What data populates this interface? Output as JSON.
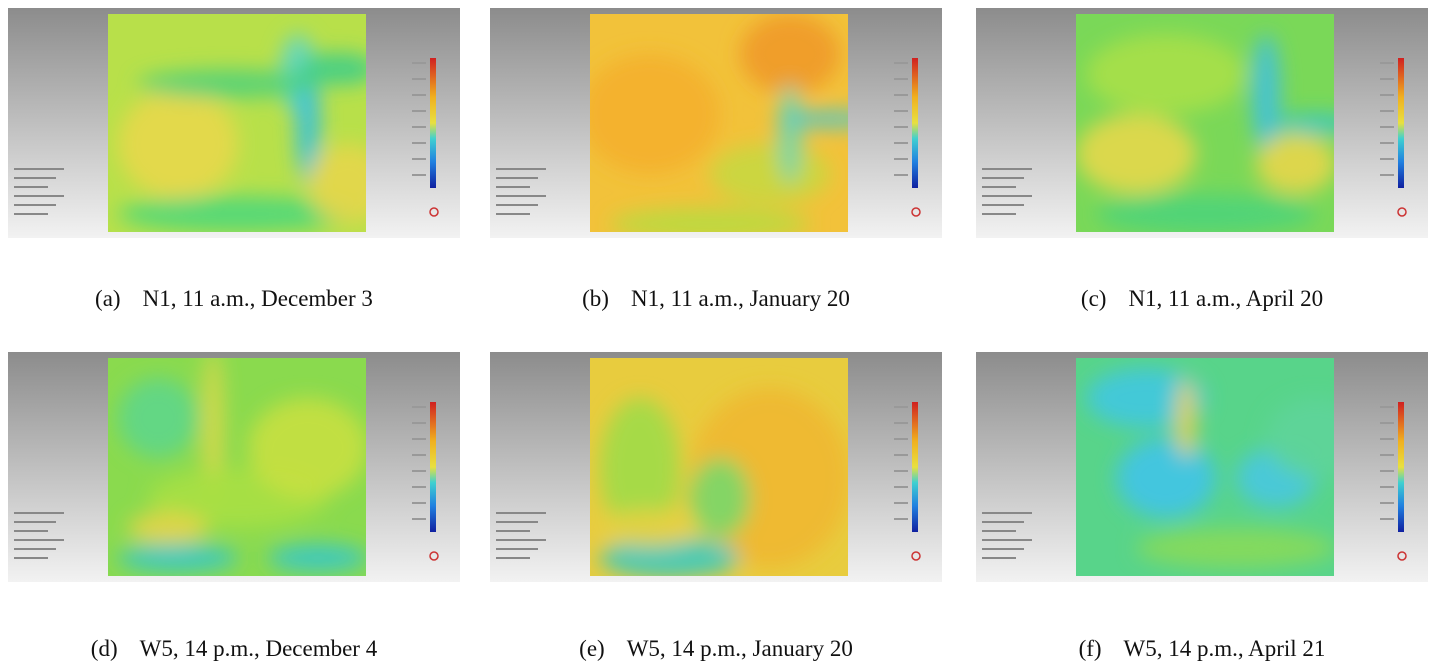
{
  "figure": {
    "panels": [
      {
        "label": "(a)",
        "caption": "N1, 11 a.m., December 3"
      },
      {
        "label": "(b)",
        "caption": "N1, 11 a.m., January 20"
      },
      {
        "label": "(c)",
        "caption": "N1, 11 a.m., April 20"
      },
      {
        "label": "(d)",
        "caption": "W5, 14 p.m., December 4"
      },
      {
        "label": "(e)",
        "caption": "W5, 14 p.m., January 20"
      },
      {
        "label": "(f)",
        "caption": "W5, 14 p.m., April 21"
      }
    ]
  }
}
